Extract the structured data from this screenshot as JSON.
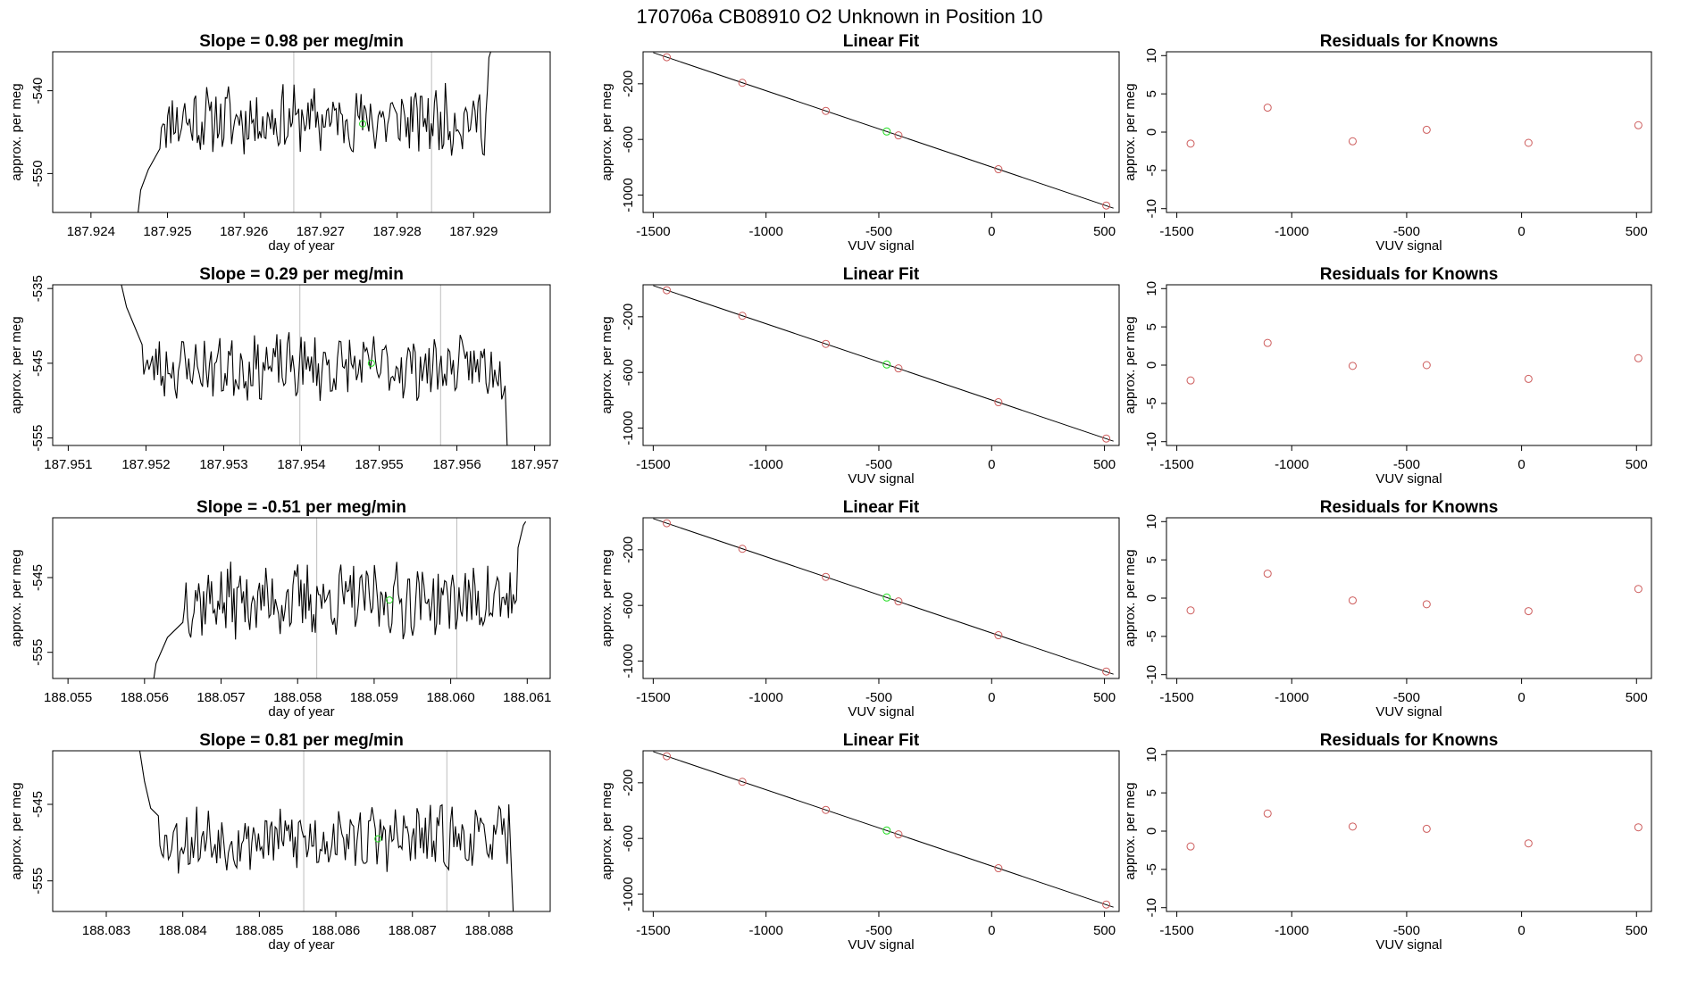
{
  "figure": {
    "title": "170706a      CB08910    O2 Unknown in Position  10"
  },
  "colors": {
    "trace": "#000000",
    "boundary": "#bebebe",
    "known_point": "#cd5c5c",
    "unknown_point": "#22dd22",
    "frame": "#000000"
  },
  "chart_data": [
    {
      "type": "line",
      "row": 1,
      "panel": "trace",
      "title": "Slope =  0.98  per meg/min",
      "xlabel": "day of year",
      "ylabel": "approx. per meg",
      "xlim": [
        187.9235,
        187.93
      ],
      "ylim": [
        -554.7,
        -535.3
      ],
      "xticks": [
        187.924,
        187.925,
        187.926,
        187.927,
        187.928,
        187.929
      ],
      "xtick_labels": [
        "187.924",
        "187.925",
        "187.926",
        "187.927",
        "187.928",
        "187.929"
      ],
      "yticks": [
        -540,
        -550
      ],
      "ytick_labels": [
        "-540",
        "-550"
      ],
      "vlines": [
        187.92665,
        187.92845
      ],
      "x_start": 187.9246,
      "x_end": 187.9293,
      "base": -543.5,
      "amp": 3.0,
      "seed": 11,
      "ramp_in": [
        [
          187.9246,
          -556.0
        ],
        [
          187.92465,
          -552.0
        ],
        [
          187.92475,
          -549.5
        ],
        [
          187.9249,
          -547.0
        ]
      ],
      "ramp_out": [
        [
          187.92918,
          -540.0
        ],
        [
          187.9292,
          -536.0
        ],
        [
          187.92925,
          -534.5
        ]
      ],
      "unknown_point": [
        187.92755,
        -544.0
      ]
    },
    {
      "type": "scatter",
      "row": 1,
      "panel": "fit",
      "title": "Linear Fit",
      "xlabel": "VUV signal",
      "ylabel": "approx. per meg",
      "xlim": [
        -1545,
        565
      ],
      "ylim": [
        -1125,
        30
      ],
      "xticks": [
        -1500,
        -1000,
        -500,
        0,
        500
      ],
      "xtick_labels": [
        "-1500",
        "-1000",
        "-500",
        "0",
        "500"
      ],
      "yticks": [
        -200,
        -600,
        -1000
      ],
      "ytick_labels": [
        "-200",
        "-600",
        "-1000"
      ],
      "line": [
        [
          -1500,
          24
        ],
        [
          540,
          -1094
        ]
      ],
      "points": [
        [
          -1440,
          -9
        ],
        [
          -1105,
          -193
        ],
        [
          -735,
          -395
        ],
        [
          -413,
          -571
        ],
        [
          30,
          -814
        ],
        [
          508,
          -1075
        ]
      ],
      "unknown": [
        -465,
        -543
      ]
    },
    {
      "type": "scatter",
      "row": 1,
      "panel": "residuals",
      "title": "Residuals for Knowns",
      "xlabel": "VUV signal",
      "ylabel": "approx. per meg",
      "xlim": [
        -1545,
        565
      ],
      "ylim": [
        -10.5,
        10.5
      ],
      "xticks": [
        -1500,
        -1000,
        -500,
        0,
        500
      ],
      "xtick_labels": [
        "-1500",
        "-1000",
        "-500",
        "0",
        "500"
      ],
      "yticks": [
        10,
        5,
        0,
        -5,
        -10
      ],
      "ytick_labels": [
        "10",
        "5",
        "0",
        "-5",
        "-10"
      ],
      "points": [
        [
          -1440,
          -1.5
        ],
        [
          -1105,
          3.2
        ],
        [
          -735,
          -1.2
        ],
        [
          -413,
          0.3
        ],
        [
          30,
          -1.4
        ],
        [
          508,
          0.9
        ]
      ]
    },
    {
      "type": "line",
      "row": 2,
      "panel": "trace",
      "title": "Slope =  0.29  per meg/min",
      "xlabel": "",
      "ylabel": "approx. per meg",
      "xlim": [
        187.9508,
        187.9572
      ],
      "ylim": [
        -556.0,
        -534.5
      ],
      "xticks": [
        187.951,
        187.952,
        187.953,
        187.954,
        187.955,
        187.956,
        187.957
      ],
      "xtick_labels": [
        "187.951",
        "187.952",
        "187.953",
        "187.954",
        "187.955",
        "187.956",
        "187.957"
      ],
      "yticks": [
        -535,
        -545,
        -555
      ],
      "ytick_labels": [
        "-535",
        "-545",
        "-555"
      ],
      "vlines": [
        187.95398,
        187.95579
      ],
      "x_start": 187.95165,
      "x_end": 187.95665,
      "base": -545.5,
      "amp": 3.2,
      "seed": 23,
      "ramp_in": [
        [
          187.95165,
          -533.0
        ],
        [
          187.95175,
          -537.5
        ],
        [
          187.95185,
          -540.0
        ],
        [
          187.95195,
          -542.5
        ]
      ],
      "ramp_out": [
        [
          187.95662,
          -548.0
        ],
        [
          187.95665,
          -557.0
        ]
      ],
      "unknown_point": [
        187.9549,
        -545.0
      ]
    },
    {
      "type": "scatter",
      "row": 2,
      "panel": "fit",
      "title": "Linear Fit",
      "xlabel": "VUV signal",
      "ylabel": "approx. per meg",
      "xlim": [
        -1545,
        565
      ],
      "ylim": [
        -1125,
        30
      ],
      "xticks": [
        -1500,
        -1000,
        -500,
        0,
        500
      ],
      "xtick_labels": [
        "-1500",
        "-1000",
        "-500",
        "0",
        "500"
      ],
      "yticks": [
        -200,
        -600,
        -1000
      ],
      "ytick_labels": [
        "-200",
        "-600",
        "-1000"
      ],
      "line": [
        [
          -1500,
          24
        ],
        [
          540,
          -1094
        ]
      ],
      "points": [
        [
          -1440,
          -9
        ],
        [
          -1105,
          -193
        ],
        [
          -735,
          -395
        ],
        [
          -413,
          -571
        ],
        [
          30,
          -814
        ],
        [
          508,
          -1075
        ]
      ],
      "unknown": [
        -465,
        -543
      ]
    },
    {
      "type": "scatter",
      "row": 2,
      "panel": "residuals",
      "title": "Residuals for Knowns",
      "xlabel": "VUV signal",
      "ylabel": "approx. per meg",
      "xlim": [
        -1545,
        565
      ],
      "ylim": [
        -10.5,
        10.5
      ],
      "xticks": [
        -1500,
        -1000,
        -500,
        0,
        500
      ],
      "xtick_labels": [
        "-1500",
        "-1000",
        "-500",
        "0",
        "500"
      ],
      "yticks": [
        10,
        5,
        0,
        -5,
        -10
      ],
      "ytick_labels": [
        "10",
        "5",
        "0",
        "-5",
        "-10"
      ],
      "points": [
        [
          -1440,
          -2.0
        ],
        [
          -1105,
          2.9
        ],
        [
          -735,
          -0.1
        ],
        [
          -413,
          0.0
        ],
        [
          30,
          -1.8
        ],
        [
          508,
          0.9
        ]
      ]
    },
    {
      "type": "line",
      "row": 3,
      "panel": "trace",
      "title": "Slope =  -0.51  per meg/min",
      "xlabel": "day of year",
      "ylabel": "approx. per meg",
      "xlim": [
        188.0548,
        188.0613
      ],
      "ylim": [
        -558.5,
        -537.0
      ],
      "xticks": [
        188.055,
        188.056,
        188.057,
        188.058,
        188.059,
        188.06,
        188.061
      ],
      "xtick_labels": [
        "188.055",
        "188.056",
        "188.057",
        "188.058",
        "188.059",
        "188.060",
        "188.061"
      ],
      "yticks": [
        -545,
        -555
      ],
      "ytick_labels": [
        "-545",
        "-555"
      ],
      "vlines": [
        188.05825,
        188.06008
      ],
      "x_start": 188.0561,
      "x_end": 188.06098,
      "base": -548.0,
      "amp": 3.6,
      "seed": 37,
      "ramp_in": [
        [
          188.0561,
          -560.0
        ],
        [
          188.05615,
          -556.5
        ],
        [
          188.0563,
          -553.0
        ],
        [
          188.0565,
          -551.0
        ]
      ],
      "ramp_out": [
        [
          188.06088,
          -541.0
        ],
        [
          188.06095,
          -538.0
        ],
        [
          188.06098,
          -537.5
        ]
      ],
      "unknown_point": [
        188.0592,
        -548.0
      ]
    },
    {
      "type": "scatter",
      "row": 3,
      "panel": "fit",
      "title": "Linear Fit",
      "xlabel": "VUV signal",
      "ylabel": "approx. per meg",
      "xlim": [
        -1545,
        565
      ],
      "ylim": [
        -1125,
        30
      ],
      "xticks": [
        -1500,
        -1000,
        -500,
        0,
        500
      ],
      "xtick_labels": [
        "-1500",
        "-1000",
        "-500",
        "0",
        "500"
      ],
      "yticks": [
        -200,
        -600,
        -1000
      ],
      "ytick_labels": [
        "-200",
        "-600",
        "-1000"
      ],
      "line": [
        [
          -1500,
          24
        ],
        [
          540,
          -1094
        ]
      ],
      "points": [
        [
          -1440,
          -9
        ],
        [
          -1105,
          -193
        ],
        [
          -735,
          -395
        ],
        [
          -413,
          -571
        ],
        [
          30,
          -814
        ],
        [
          508,
          -1075
        ]
      ],
      "unknown": [
        -465,
        -543
      ]
    },
    {
      "type": "scatter",
      "row": 3,
      "panel": "residuals",
      "title": "Residuals for Knowns",
      "xlabel": "VUV signal",
      "ylabel": "approx. per meg",
      "xlim": [
        -1545,
        565
      ],
      "ylim": [
        -10.5,
        10.5
      ],
      "xticks": [
        -1500,
        -1000,
        -500,
        0,
        500
      ],
      "xtick_labels": [
        "-1500",
        "-1000",
        "-500",
        "0",
        "500"
      ],
      "yticks": [
        10,
        5,
        0,
        -5,
        -10
      ],
      "ytick_labels": [
        "10",
        "5",
        "0",
        "-5",
        "-10"
      ],
      "points": [
        [
          -1440,
          -1.6
        ],
        [
          -1105,
          3.2
        ],
        [
          -735,
          -0.3
        ],
        [
          -413,
          -0.8
        ],
        [
          30,
          -1.7
        ],
        [
          508,
          1.2
        ]
      ]
    },
    {
      "type": "line",
      "row": 4,
      "panel": "trace",
      "title": "Slope =  0.81  per meg/min",
      "xlabel": "day of year",
      "ylabel": "approx. per meg",
      "xlim": [
        188.0823,
        188.0888
      ],
      "ylim": [
        -559.0,
        -538.0
      ],
      "xticks": [
        188.083,
        188.084,
        188.085,
        188.086,
        188.087,
        188.088
      ],
      "xtick_labels": [
        "188.083",
        "188.084",
        "188.085",
        "188.086",
        "188.087",
        "188.088"
      ],
      "yticks": [
        -545,
        -555
      ],
      "ytick_labels": [
        "-545",
        "-555"
      ],
      "vlines": [
        188.08558,
        188.08745
      ],
      "x_start": 188.08343,
      "x_end": 188.08832,
      "base": -549.5,
      "amp": 3.2,
      "seed": 53,
      "ramp_in": [
        [
          188.08343,
          -537.5
        ],
        [
          188.0835,
          -542.0
        ],
        [
          188.08358,
          -545.5
        ],
        [
          188.08368,
          -546.5
        ]
      ],
      "ramp_out": [
        [
          188.08826,
          -545.0
        ],
        [
          188.08832,
          -560.0
        ]
      ],
      "unknown_point": [
        188.08655,
        -549.5
      ]
    },
    {
      "type": "scatter",
      "row": 4,
      "panel": "fit",
      "title": "Linear Fit",
      "xlabel": "VUV signal",
      "ylabel": "approx. per meg",
      "xlim": [
        -1545,
        565
      ],
      "ylim": [
        -1125,
        30
      ],
      "xticks": [
        -1500,
        -1000,
        -500,
        0,
        500
      ],
      "xtick_labels": [
        "-1500",
        "-1000",
        "-500",
        "0",
        "500"
      ],
      "yticks": [
        -200,
        -600,
        -1000
      ],
      "ytick_labels": [
        "-200",
        "-600",
        "-1000"
      ],
      "line": [
        [
          -1500,
          24
        ],
        [
          540,
          -1094
        ]
      ],
      "points": [
        [
          -1440,
          -9
        ],
        [
          -1105,
          -193
        ],
        [
          -735,
          -395
        ],
        [
          -413,
          -571
        ],
        [
          30,
          -814
        ],
        [
          508,
          -1075
        ]
      ],
      "unknown": [
        -465,
        -543
      ]
    },
    {
      "type": "scatter",
      "row": 4,
      "panel": "residuals",
      "title": "Residuals for Knowns",
      "xlabel": "VUV signal",
      "ylabel": "approx. per meg",
      "xlim": [
        -1545,
        565
      ],
      "ylim": [
        -10.5,
        10.5
      ],
      "xticks": [
        -1500,
        -1000,
        -500,
        0,
        500
      ],
      "xtick_labels": [
        "-1500",
        "-1000",
        "-500",
        "0",
        "500"
      ],
      "yticks": [
        10,
        5,
        0,
        -5,
        -10
      ],
      "ytick_labels": [
        "10",
        "5",
        "0",
        "-5",
        "-10"
      ],
      "points": [
        [
          -1440,
          -2.0
        ],
        [
          -1105,
          2.3
        ],
        [
          -735,
          0.6
        ],
        [
          -413,
          0.3
        ],
        [
          30,
          -1.6
        ],
        [
          508,
          0.5
        ]
      ]
    }
  ]
}
